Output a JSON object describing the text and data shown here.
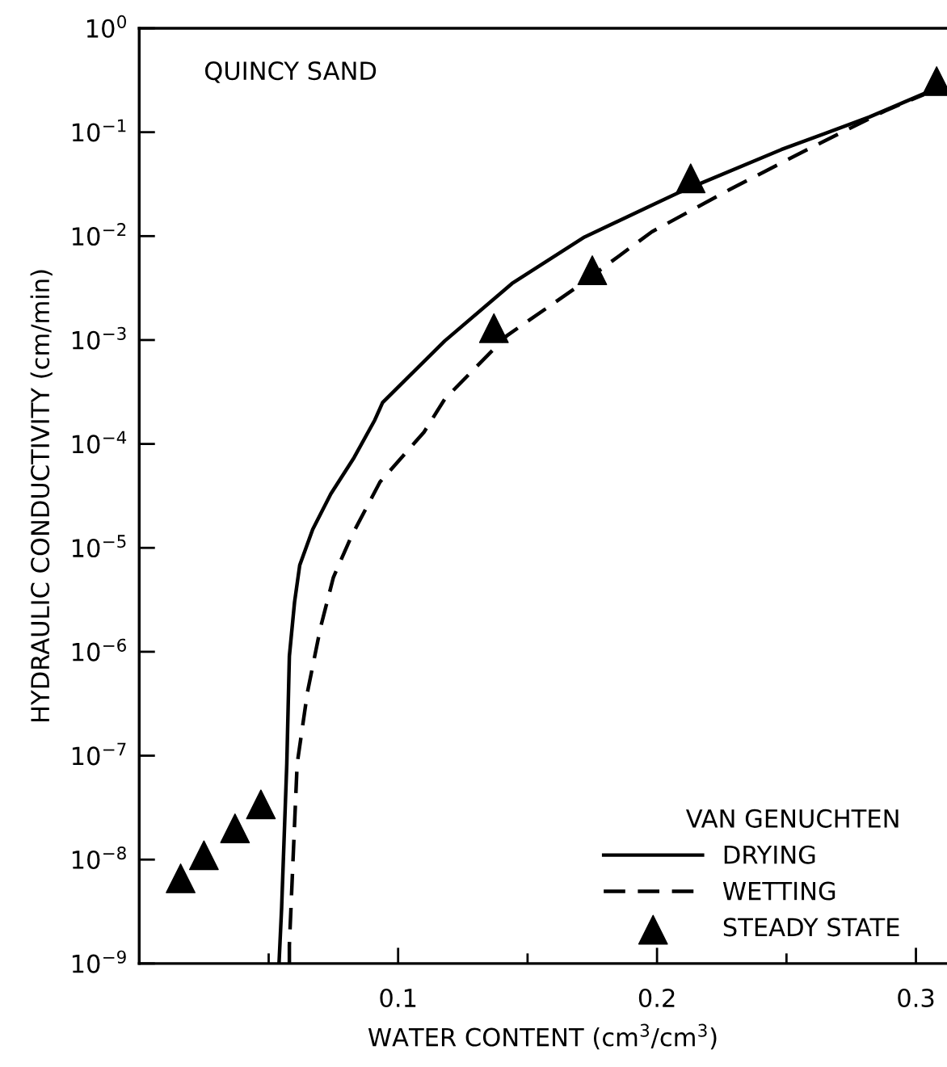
{
  "chart_data": {
    "type": "line",
    "xlabel": "WATER CONTENT (cm$^{3}$/cm$^{3}$)",
    "ylabel": "HYDRAULIC CONDUCTIVITY (cm/min)",
    "legend_title": "VAN GENUCHTEN",
    "annotations": [
      "QUINCY SAND"
    ],
    "log": "y",
    "xlim": [
      0,
      0.312
    ],
    "ylim": [
      1e-09,
      1
    ],
    "xticks": [
      {
        "value": 0.05,
        "label": null
      },
      0.1,
      {
        "value": 0.15,
        "label": null
      },
      0.2,
      {
        "value": 0.25,
        "label": null
      },
      0.3
    ],
    "yticks": [
      {
        "value": 1e-09,
        "label": "10$^{−9}$"
      },
      {
        "value": 1e-08,
        "label": "10$^{−8}$"
      },
      {
        "value": 1e-07,
        "label": "10$^{−7}$"
      },
      {
        "value": 1e-06,
        "label": "10$^{−6}$"
      },
      {
        "value": 1e-05,
        "label": "10$^{−5}$"
      },
      {
        "value": 0.0001,
        "label": "10$^{−4}$"
      },
      {
        "value": 0.001,
        "label": "10$^{−3}$"
      },
      {
        "value": 0.01,
        "label": "10$^{−2}$"
      },
      {
        "value": 0.1,
        "label": "10$^{−1}$"
      },
      {
        "value": 1,
        "label": "10$^{0}$"
      }
    ],
    "grid": false,
    "legend": "bottom right",
    "series": [
      {
        "name": "DRYING",
        "line_style": "solid",
        "marker": "none",
        "color": "#000000",
        "x": [
          0.054,
          0.055,
          0.057,
          0.058,
          0.06,
          0.062,
          0.067,
          0.074,
          0.083,
          0.091,
          0.094,
          0.118,
          0.144,
          0.172,
          0.208,
          0.248,
          0.282,
          0.304
        ],
        "values": [
          1e-09,
          3.4e-09,
          8.3e-08,
          9.1e-07,
          3e-06,
          6.8e-06,
          1.5e-05,
          3.3e-05,
          7.4e-05,
          0.00017,
          0.00025,
          0.00098,
          0.0035,
          0.0098,
          0.026,
          0.068,
          0.14,
          0.24
        ]
      },
      {
        "name": "WETTING",
        "line_style": "dashed",
        "marker": "none",
        "color": "#000000",
        "x": [
          0.058,
          0.058,
          0.061,
          0.065,
          0.07,
          0.075,
          0.082,
          0.093,
          0.11,
          0.118,
          0.142,
          0.168,
          0.198,
          0.228,
          0.258,
          0.288,
          0.303
        ],
        "values": [
          1e-09,
          1.5e-09,
          8.3e-08,
          4.1e-07,
          1.7e-06,
          5.2e-06,
          1.3e-05,
          4.3e-05,
          0.00013,
          0.00027,
          0.0011,
          0.0031,
          0.011,
          0.028,
          0.068,
          0.16,
          0.23
        ]
      },
      {
        "name": "STEADY STATE",
        "type": "scatter",
        "marker": "triangle",
        "color": "#000000",
        "x": [
          0.016,
          0.025,
          0.037,
          0.047,
          0.137,
          0.175,
          0.213,
          0.308
        ],
        "values": [
          6.6e-09,
          1.1e-08,
          2e-08,
          3.4e-08,
          0.0013,
          0.0047,
          0.036,
          0.31
        ]
      }
    ]
  }
}
